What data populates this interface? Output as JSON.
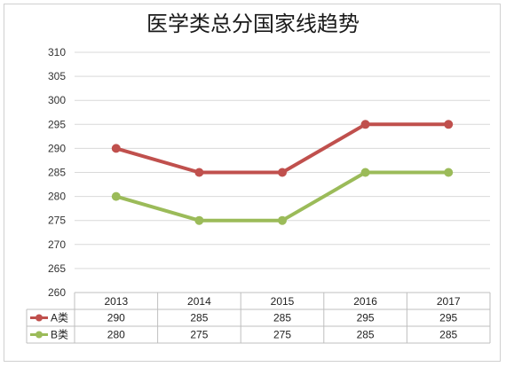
{
  "chart_data": {
    "type": "line",
    "title": "医学类总分国家线趋势",
    "categories": [
      "2013",
      "2014",
      "2015",
      "2016",
      "2017"
    ],
    "series": [
      {
        "name": "A类",
        "values": [
          290,
          285,
          285,
          295,
          295
        ],
        "color": "#c0504d"
      },
      {
        "name": "B类",
        "values": [
          280,
          275,
          275,
          285,
          285
        ],
        "color": "#9bbb59"
      }
    ],
    "ylim": [
      260,
      310
    ],
    "yticks": [
      "260",
      "265",
      "270",
      "275",
      "280",
      "285",
      "290",
      "295",
      "300",
      "305",
      "310"
    ],
    "grid": true,
    "legend": "data-table"
  }
}
